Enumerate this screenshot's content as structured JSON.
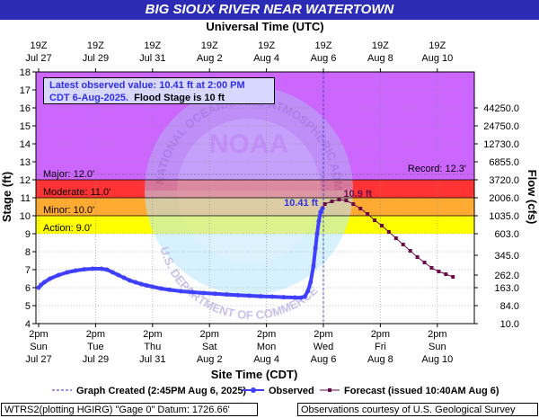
{
  "title": "BIG SIOUX RIVER NEAR WATERTOWN",
  "chart_data": {
    "type": "line",
    "title": "BIG SIOUX RIVER NEAR WATERTOWN",
    "top_axis_title": "Universal Time (UTC)",
    "xlabel": "Site Time (CDT)",
    "ylabel": "Stage (ft)",
    "y2label": "Flow (cfs)",
    "ylim": [
      4,
      18
    ],
    "yticks": [
      4,
      5,
      6,
      7,
      8,
      9,
      10,
      11,
      12,
      13,
      14,
      15,
      16,
      17,
      18
    ],
    "flow_ticks": [
      {
        "stage": 4,
        "label": "10.0"
      },
      {
        "stage": 5,
        "label": "84.0"
      },
      {
        "stage": 6,
        "label": "163.0"
      },
      {
        "stage": 6.7,
        "label": "262.0"
      },
      {
        "stage": 7.8,
        "label": "345.0"
      },
      {
        "stage": 9,
        "label": "603.0"
      },
      {
        "stage": 10,
        "label": "1035.0"
      },
      {
        "stage": 11,
        "label": "2006.0"
      },
      {
        "stage": 12,
        "label": "3720.0"
      },
      {
        "stage": 13,
        "label": "6855.0"
      },
      {
        "stage": 14,
        "label": "12730.0"
      },
      {
        "stage": 15,
        "label": "24750.0"
      },
      {
        "stage": 16,
        "label": "44250.0"
      }
    ],
    "x_range_days": [
      0,
      15
    ],
    "bottom_ticks": [
      {
        "day": 0,
        "line1": "2pm",
        "line2": "Sun",
        "line3": "Jul 27"
      },
      {
        "day": 2,
        "line1": "2pm",
        "line2": "Tue",
        "line3": "Jul 29"
      },
      {
        "day": 4,
        "line1": "2pm",
        "line2": "Thu",
        "line3": "Jul 31"
      },
      {
        "day": 6,
        "line1": "2pm",
        "line2": "Sat",
        "line3": "Aug 2"
      },
      {
        "day": 8,
        "line1": "2pm",
        "line2": "Mon",
        "line3": "Aug 4"
      },
      {
        "day": 10,
        "line1": "2pm",
        "line2": "Wed",
        "line3": "Aug 6"
      },
      {
        "day": 12,
        "line1": "2pm",
        "line2": "Fri",
        "line3": "Aug 8"
      },
      {
        "day": 14,
        "line1": "2pm",
        "line2": "Sun",
        "line3": "Aug 10"
      }
    ],
    "top_ticks": [
      {
        "day": 0,
        "line1": "19Z",
        "line2": "Jul 27"
      },
      {
        "day": 2,
        "line1": "19Z",
        "line2": "Jul 29"
      },
      {
        "day": 4,
        "line1": "19Z",
        "line2": "Jul 31"
      },
      {
        "day": 6,
        "line1": "19Z",
        "line2": "Aug 2"
      },
      {
        "day": 8,
        "line1": "19Z",
        "line2": "Aug 4"
      },
      {
        "day": 10,
        "line1": "19Z",
        "line2": "Aug 6"
      },
      {
        "day": 12,
        "line1": "19Z",
        "line2": "Aug 8"
      },
      {
        "day": 14,
        "line1": "19Z",
        "line2": "Aug 10"
      }
    ],
    "bands": [
      {
        "name": "Action",
        "label": "Action: 9.0'",
        "from": 9,
        "to": 10,
        "color": "#ffff00"
      },
      {
        "name": "Minor",
        "label": "Minor: 10.0'",
        "from": 10,
        "to": 11,
        "color": "#ffaa33"
      },
      {
        "name": "Moderate",
        "label": "Moderate: 11.0'",
        "from": 11,
        "to": 12,
        "color": "#ff3333"
      },
      {
        "name": "Major",
        "label": "Major: 12.0'",
        "from": 12,
        "to": 18,
        "color": "#cc66ff"
      }
    ],
    "record": {
      "label": "Record: 12.3'",
      "value": 12.3
    },
    "graph_created_day": 10.0,
    "series": [
      {
        "name": "Observed",
        "color": "#3f3fff",
        "points": [
          [
            0.0,
            6.0
          ],
          [
            0.08,
            6.15
          ],
          [
            0.2,
            6.3
          ],
          [
            0.4,
            6.5
          ],
          [
            0.7,
            6.7
          ],
          [
            1.0,
            6.85
          ],
          [
            1.3,
            6.95
          ],
          [
            1.6,
            7.02
          ],
          [
            1.9,
            7.05
          ],
          [
            2.2,
            7.05
          ],
          [
            2.4,
            7.0
          ],
          [
            2.6,
            6.85
          ],
          [
            2.8,
            6.7
          ],
          [
            3.0,
            6.55
          ],
          [
            3.2,
            6.4
          ],
          [
            3.4,
            6.3
          ],
          [
            3.6,
            6.2
          ],
          [
            3.8,
            6.12
          ],
          [
            4.0,
            6.05
          ],
          [
            4.3,
            5.95
          ],
          [
            4.6,
            5.88
          ],
          [
            5.0,
            5.8
          ],
          [
            5.4,
            5.75
          ],
          [
            5.8,
            5.7
          ],
          [
            6.2,
            5.66
          ],
          [
            6.6,
            5.62
          ],
          [
            7.0,
            5.58
          ],
          [
            7.4,
            5.55
          ],
          [
            7.8,
            5.52
          ],
          [
            8.2,
            5.5
          ],
          [
            8.6,
            5.47
          ],
          [
            9.0,
            5.45
          ],
          [
            9.2,
            5.44
          ],
          [
            9.35,
            5.5
          ],
          [
            9.45,
            5.8
          ],
          [
            9.55,
            6.3
          ],
          [
            9.65,
            7.2
          ],
          [
            9.72,
            8.2
          ],
          [
            9.78,
            9.0
          ],
          [
            9.84,
            9.7
          ],
          [
            9.9,
            10.2
          ],
          [
            9.97,
            10.41
          ]
        ]
      },
      {
        "name": "Forecast (issued 10:40AM Aug 6)",
        "color": "#6a0a4a",
        "points": [
          [
            10.05,
            10.65
          ],
          [
            10.3,
            10.8
          ],
          [
            10.55,
            10.9
          ],
          [
            10.8,
            10.85
          ],
          [
            11.05,
            10.65
          ],
          [
            11.3,
            10.4
          ],
          [
            11.55,
            10.1
          ],
          [
            11.8,
            9.75
          ],
          [
            12.05,
            9.45
          ],
          [
            12.3,
            9.1
          ],
          [
            12.55,
            8.75
          ],
          [
            12.8,
            8.4
          ],
          [
            13.05,
            8.05
          ],
          [
            13.3,
            7.7
          ],
          [
            13.55,
            7.4
          ],
          [
            13.8,
            7.1
          ],
          [
            14.05,
            6.9
          ],
          [
            14.3,
            6.75
          ],
          [
            14.55,
            6.6
          ]
        ]
      }
    ],
    "annotations": [
      {
        "text": "10.41 ft",
        "day": 9.97,
        "value": 10.41,
        "color": "#2f2fe8"
      },
      {
        "text": "10.9 ft",
        "day": 10.55,
        "value": 10.9,
        "color": "#6a0a4a"
      }
    ],
    "grid": true,
    "legend": {
      "graph_created": "Graph Created (2:45PM Aug 6, 2025)",
      "observed": "Observed",
      "forecast": "Forecast (issued 10:40AM Aug 6)"
    }
  },
  "info_box": {
    "line1": "Latest observed value: 10.41 ft at 2:00 PM",
    "line2_blue": "CDT 6-Aug-2025.",
    "line2_black": "Flood Stage is 10 ft"
  },
  "watermark": {
    "logo_text": "NOAA",
    "ring_text": "NATIONAL OCEANIC AND ATMOSPHERIC ADMINISTRATION",
    "bottom_text": "U.S. DEPARTMENT OF COMMERCE"
  },
  "footer": {
    "left": "WTRS2(plotting HGIRG) \"Gage 0\" Datum: 1726.66'",
    "right": "Observations courtesy of U.S. Geological Survey"
  }
}
